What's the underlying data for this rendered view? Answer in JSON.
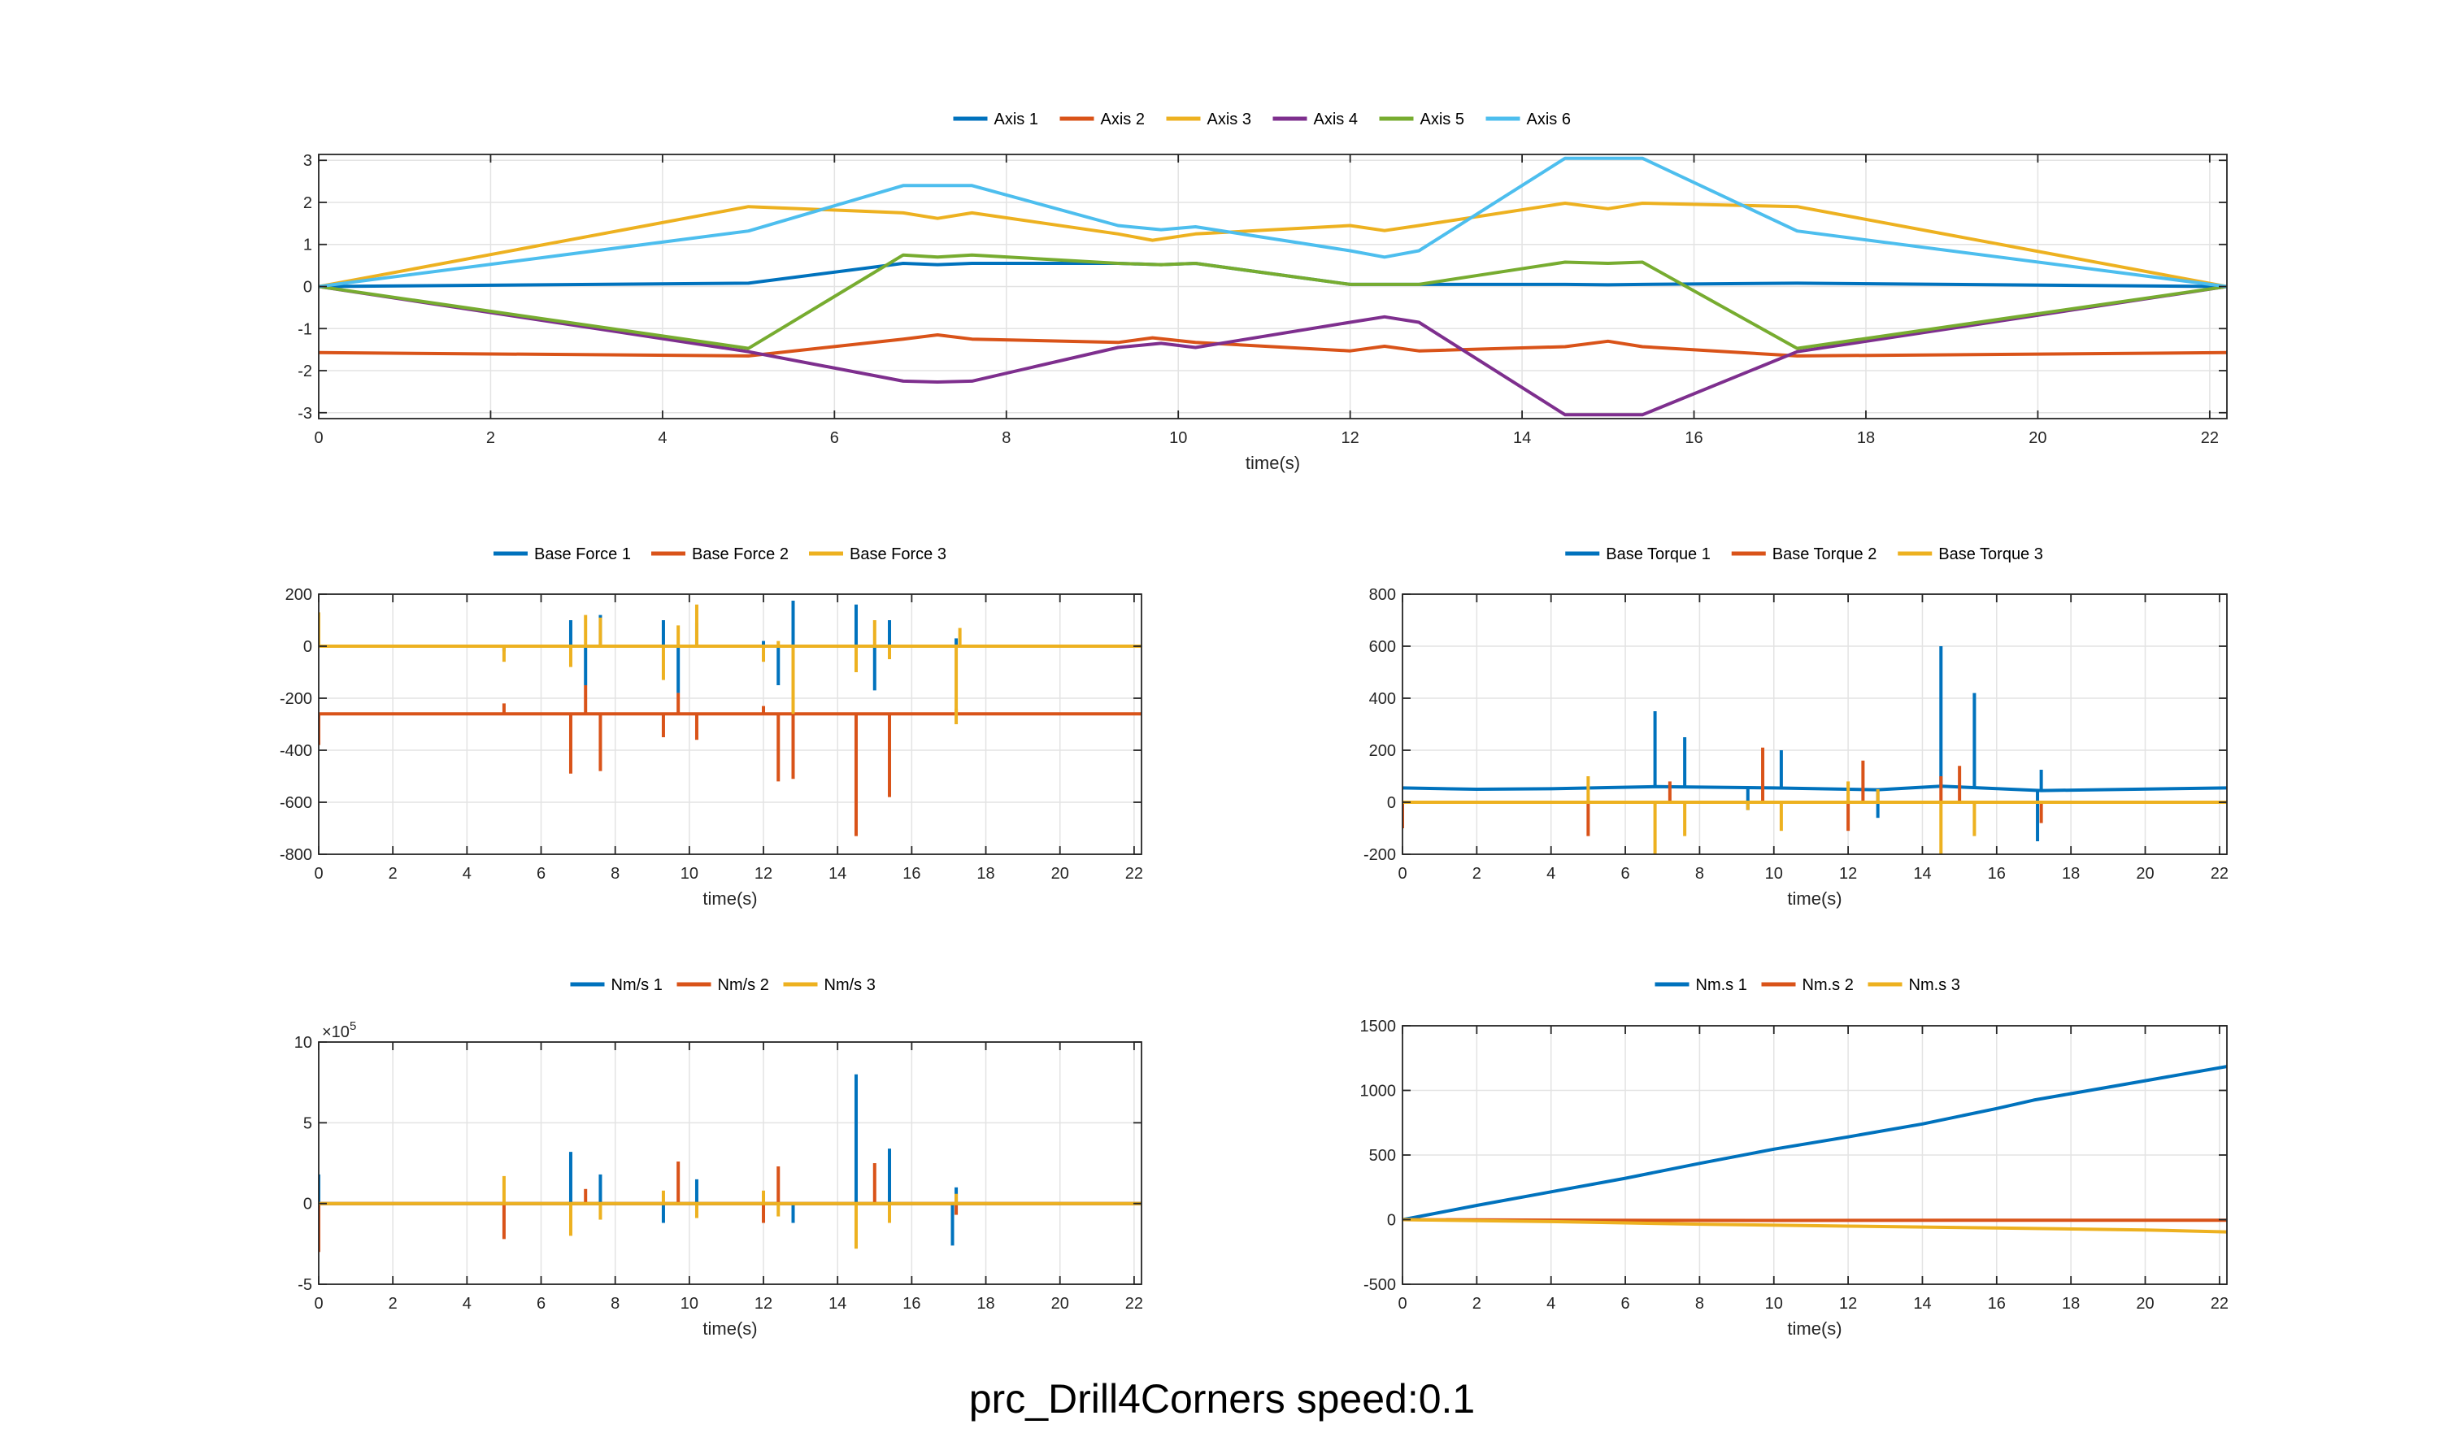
{
  "page": {
    "title": "prc_Drill4Corners  speed:0.1",
    "colors": [
      "#0072BD",
      "#D95319",
      "#EDB120",
      "#7E2F8E",
      "#77AC30",
      "#4DBEEE"
    ]
  },
  "chart_data": [
    {
      "id": "joint-angles",
      "type": "line",
      "xlabel": "time(s)",
      "ylabel": "",
      "xlim": [
        0,
        22.2
      ],
      "ylim": [
        -3.14,
        3.14
      ],
      "xticks": [
        0,
        2,
        4,
        6,
        8,
        10,
        12,
        14,
        16,
        18,
        20,
        22
      ],
      "xtick_labels": [
        "0",
        "2",
        "4",
        "6",
        "8",
        "10",
        "12",
        "14",
        "16",
        "18",
        "20",
        "22"
      ],
      "yticks": [
        -3,
        -2,
        -1,
        0,
        1,
        2,
        3
      ],
      "ytick_labels": [
        "-3",
        "-2",
        "-1",
        "0",
        "1",
        "2",
        "3"
      ],
      "grid": true,
      "legend": "top-center",
      "series": [
        {
          "name": "Axis 1",
          "color": "#0072BD",
          "x": [
            0,
            5,
            6.8,
            7.2,
            7.6,
            9.3,
            9.8,
            10.2,
            12,
            12.8,
            14.5,
            15,
            15.4,
            17.2,
            22.2
          ],
          "y": [
            0,
            0.08,
            0.55,
            0.52,
            0.55,
            0.55,
            0.52,
            0.55,
            0.05,
            0.05,
            0.05,
            0.04,
            0.05,
            0.08,
            0
          ]
        },
        {
          "name": "Axis 2",
          "color": "#D95319",
          "x": [
            0,
            5,
            6.8,
            7.2,
            7.6,
            9.3,
            9.7,
            10.2,
            12,
            12.4,
            12.8,
            14.5,
            15,
            15.4,
            17.2,
            22.2
          ],
          "y": [
            -1.57,
            -1.65,
            -1.25,
            -1.15,
            -1.25,
            -1.33,
            -1.22,
            -1.33,
            -1.53,
            -1.42,
            -1.53,
            -1.43,
            -1.3,
            -1.43,
            -1.65,
            -1.57
          ]
        },
        {
          "name": "Axis 3",
          "color": "#EDB120",
          "x": [
            0,
            5,
            6.8,
            7.2,
            7.6,
            9.3,
            9.7,
            10.2,
            12,
            12.4,
            12.8,
            14.5,
            15,
            15.4,
            17.2,
            22.2
          ],
          "y": [
            0,
            1.9,
            1.75,
            1.62,
            1.75,
            1.25,
            1.1,
            1.25,
            1.45,
            1.33,
            1.45,
            1.98,
            1.85,
            1.98,
            1.9,
            0
          ]
        },
        {
          "name": "Axis 4",
          "color": "#7E2F8E",
          "x": [
            0,
            5,
            6.8,
            7.2,
            7.6,
            9.3,
            9.8,
            10.2,
            12,
            12.4,
            12.8,
            14.5,
            15,
            15.4,
            17.2,
            22.2
          ],
          "y": [
            0,
            -1.55,
            -2.25,
            -2.27,
            -2.25,
            -1.45,
            -1.35,
            -1.45,
            -0.85,
            -0.72,
            -0.85,
            -3.05,
            -3.05,
            -3.05,
            -1.55,
            0
          ]
        },
        {
          "name": "Axis 5",
          "color": "#77AC30",
          "x": [
            0,
            5,
            6.8,
            7.2,
            7.6,
            9.3,
            9.8,
            10.2,
            12,
            12.8,
            14.5,
            15,
            15.4,
            17.2,
            22.2
          ],
          "y": [
            0,
            -1.47,
            0.75,
            0.7,
            0.75,
            0.55,
            0.52,
            0.55,
            0.05,
            0.05,
            0.58,
            0.55,
            0.58,
            -1.47,
            0
          ]
        },
        {
          "name": "Axis 6",
          "color": "#4DBEEE",
          "x": [
            0,
            5,
            6.8,
            7.2,
            7.6,
            9.3,
            9.8,
            10.2,
            12,
            12.4,
            12.8,
            14.5,
            15,
            15.4,
            17.2,
            22.2
          ],
          "y": [
            0,
            1.32,
            2.4,
            2.4,
            2.4,
            1.45,
            1.35,
            1.42,
            0.85,
            0.7,
            0.85,
            3.05,
            3.05,
            3.05,
            1.32,
            0
          ]
        }
      ]
    },
    {
      "id": "base-force",
      "type": "line",
      "xlabel": "time(s)",
      "ylabel": "",
      "xlim": [
        0,
        22.2
      ],
      "ylim": [
        -800,
        200
      ],
      "xticks": [
        0,
        2,
        4,
        6,
        8,
        10,
        12,
        14,
        16,
        18,
        20,
        22
      ],
      "xtick_labels": [
        "0",
        "2",
        "4",
        "6",
        "8",
        "10",
        "12",
        "14",
        "16",
        "18",
        "20",
        "22"
      ],
      "yticks": [
        -800,
        -600,
        -400,
        -200,
        0,
        200
      ],
      "ytick_labels": [
        "-800",
        "-600",
        "-400",
        "-200",
        "0",
        "200"
      ],
      "grid": true,
      "legend": "top-center",
      "series": [
        {
          "name": "Base Force 1",
          "color": "#0072BD",
          "baseline": 0,
          "spikes": [
            [
              0,
              60
            ],
            [
              5,
              -20
            ],
            [
              6.8,
              100
            ],
            [
              7.2,
              -150
            ],
            [
              7.6,
              120
            ],
            [
              9.3,
              100
            ],
            [
              9.7,
              -180
            ],
            [
              10.2,
              90
            ],
            [
              12,
              20
            ],
            [
              12.4,
              -150
            ],
            [
              12.8,
              175
            ],
            [
              14.5,
              160
            ],
            [
              15,
              -170
            ],
            [
              15.4,
              100
            ],
            [
              17.2,
              30
            ]
          ]
        },
        {
          "name": "Base Force 2",
          "color": "#D95319",
          "baseline": -260,
          "spikes": [
            [
              0,
              -380
            ],
            [
              5,
              -220
            ],
            [
              6.8,
              -490
            ],
            [
              7.2,
              -150
            ],
            [
              7.6,
              -480
            ],
            [
              9.3,
              -350
            ],
            [
              9.7,
              -180
            ],
            [
              10.2,
              -360
            ],
            [
              12,
              -230
            ],
            [
              12.4,
              -520
            ],
            [
              12.8,
              -510
            ],
            [
              14.5,
              -730
            ],
            [
              15.4,
              -580
            ],
            [
              17.2,
              -240
            ]
          ]
        },
        {
          "name": "Base Force 3",
          "color": "#EDB120",
          "baseline": 0,
          "spikes": [
            [
              0,
              130
            ],
            [
              5,
              -60
            ],
            [
              6.8,
              -80
            ],
            [
              7.2,
              120
            ],
            [
              7.6,
              110
            ],
            [
              9.3,
              -130
            ],
            [
              9.7,
              80
            ],
            [
              10.2,
              160
            ],
            [
              12,
              -60
            ],
            [
              12.4,
              20
            ],
            [
              12.8,
              -260
            ],
            [
              14.5,
              -100
            ],
            [
              15,
              100
            ],
            [
              15.4,
              -50
            ],
            [
              17.2,
              -300
            ],
            [
              17.3,
              70
            ]
          ]
        }
      ]
    },
    {
      "id": "base-torque",
      "type": "line",
      "xlabel": "time(s)",
      "ylabel": "",
      "xlim": [
        0,
        22.2
      ],
      "ylim": [
        -200,
        800
      ],
      "xticks": [
        0,
        2,
        4,
        6,
        8,
        10,
        12,
        14,
        16,
        18,
        20,
        22
      ],
      "xtick_labels": [
        "0",
        "2",
        "4",
        "6",
        "8",
        "10",
        "12",
        "14",
        "16",
        "18",
        "20",
        "22"
      ],
      "yticks": [
        -200,
        0,
        200,
        400,
        600,
        800
      ],
      "ytick_labels": [
        "-200",
        "0",
        "200",
        "400",
        "600",
        "800"
      ],
      "grid": true,
      "legend": "top-center",
      "series": [
        {
          "name": "Base Torque 1",
          "color": "#0072BD",
          "baseline_points": [
            [
              0,
              55
            ],
            [
              2,
              50
            ],
            [
              4,
              52
            ],
            [
              6.8,
              60
            ],
            [
              10,
              55
            ],
            [
              12.8,
              48
            ],
            [
              14.5,
              62
            ],
            [
              17.2,
              45
            ],
            [
              22.2,
              55
            ]
          ],
          "spikes": [
            [
              6.8,
              350
            ],
            [
              7.6,
              250
            ],
            [
              9.3,
              -30
            ],
            [
              10.2,
              200
            ],
            [
              12.8,
              -60
            ],
            [
              14.5,
              600
            ],
            [
              15.4,
              420
            ],
            [
              17.1,
              -150
            ],
            [
              17.2,
              125
            ]
          ]
        },
        {
          "name": "Base Torque 2",
          "color": "#D95319",
          "baseline": 0,
          "spikes": [
            [
              0,
              -100
            ],
            [
              5,
              -130
            ],
            [
              7.2,
              80
            ],
            [
              9.7,
              210
            ],
            [
              12,
              -110
            ],
            [
              12.4,
              160
            ],
            [
              14.5,
              100
            ],
            [
              15,
              140
            ],
            [
              17.2,
              -80
            ]
          ]
        },
        {
          "name": "Base Torque 3",
          "color": "#EDB120",
          "baseline": 0,
          "spikes": [
            [
              5,
              100
            ],
            [
              6.8,
              -200
            ],
            [
              7.6,
              -130
            ],
            [
              9.3,
              -30
            ],
            [
              10.2,
              -110
            ],
            [
              12,
              80
            ],
            [
              12.8,
              50
            ],
            [
              14.5,
              -200
            ],
            [
              15.4,
              -130
            ]
          ]
        }
      ]
    },
    {
      "id": "nm-per-s",
      "type": "line",
      "xlabel": "time(s)",
      "ylabel": "",
      "multiplier_label": "×10",
      "multiplier_exp": "5",
      "xlim": [
        0,
        22.2
      ],
      "ylim": [
        -5,
        10
      ],
      "xticks": [
        0,
        2,
        4,
        6,
        8,
        10,
        12,
        14,
        16,
        18,
        20,
        22
      ],
      "xtick_labels": [
        "0",
        "2",
        "4",
        "6",
        "8",
        "10",
        "12",
        "14",
        "16",
        "18",
        "20",
        "22"
      ],
      "yticks": [
        -5,
        0,
        5,
        10
      ],
      "ytick_labels": [
        "-5",
        "0",
        "5",
        "10"
      ],
      "grid": true,
      "legend": "top-center",
      "series": [
        {
          "name": "Nm/s 1",
          "color": "#0072BD",
          "baseline": 0,
          "spikes": [
            [
              0,
              1.8
            ],
            [
              6.8,
              3.2
            ],
            [
              7.6,
              1.8
            ],
            [
              9.3,
              -1.2
            ],
            [
              10.2,
              1.5
            ],
            [
              12.8,
              -1.2
            ],
            [
              14.5,
              8.0
            ],
            [
              15.4,
              3.4
            ],
            [
              17.1,
              -2.6
            ],
            [
              17.2,
              1.0
            ]
          ]
        },
        {
          "name": "Nm/s 2",
          "color": "#D95319",
          "baseline": 0,
          "spikes": [
            [
              0,
              -3.0
            ],
            [
              5,
              -2.2
            ],
            [
              7.2,
              0.9
            ],
            [
              9.7,
              2.6
            ],
            [
              12,
              -1.2
            ],
            [
              12.4,
              2.3
            ],
            [
              15,
              2.5
            ],
            [
              17.2,
              -0.7
            ]
          ]
        },
        {
          "name": "Nm/s 3",
          "color": "#EDB120",
          "baseline": 0,
          "spikes": [
            [
              5,
              1.7
            ],
            [
              6.8,
              -2.0
            ],
            [
              7.6,
              -1.0
            ],
            [
              9.3,
              0.8
            ],
            [
              10.2,
              -0.9
            ],
            [
              12,
              0.8
            ],
            [
              12.4,
              -0.8
            ],
            [
              14.5,
              -2.8
            ],
            [
              15.4,
              -1.2
            ],
            [
              17.2,
              0.6
            ]
          ]
        }
      ]
    },
    {
      "id": "nm-s",
      "type": "line",
      "xlabel": "time(s)",
      "ylabel": "",
      "xlim": [
        0,
        22.2
      ],
      "ylim": [
        -500,
        1500
      ],
      "xticks": [
        0,
        2,
        4,
        6,
        8,
        10,
        12,
        14,
        16,
        18,
        20,
        22
      ],
      "xtick_labels": [
        "0",
        "2",
        "4",
        "6",
        "8",
        "10",
        "12",
        "14",
        "16",
        "18",
        "20",
        "22"
      ],
      "yticks": [
        -500,
        0,
        500,
        1000,
        1500
      ],
      "ytick_labels": [
        "-500",
        "0",
        "500",
        "1000",
        "1500"
      ],
      "grid": true,
      "legend": "top-center",
      "series": [
        {
          "name": "Nm.s 1",
          "color": "#0072BD",
          "x": [
            0,
            2,
            4,
            6,
            8,
            10,
            12,
            14,
            16,
            17,
            18,
            20,
            22.2
          ],
          "y": [
            0,
            110,
            215,
            320,
            435,
            545,
            640,
            740,
            860,
            925,
            975,
            1075,
            1185
          ]
        },
        {
          "name": "Nm.s 2",
          "color": "#D95319",
          "x": [
            0,
            5,
            10,
            15,
            22.2
          ],
          "y": [
            0,
            -5,
            -6,
            -5,
            -5
          ]
        },
        {
          "name": "Nm.s 3",
          "color": "#EDB120",
          "x": [
            0,
            4,
            8,
            12,
            16,
            20,
            22.2
          ],
          "y": [
            0,
            -15,
            -35,
            -50,
            -65,
            -80,
            -95
          ]
        }
      ]
    }
  ]
}
